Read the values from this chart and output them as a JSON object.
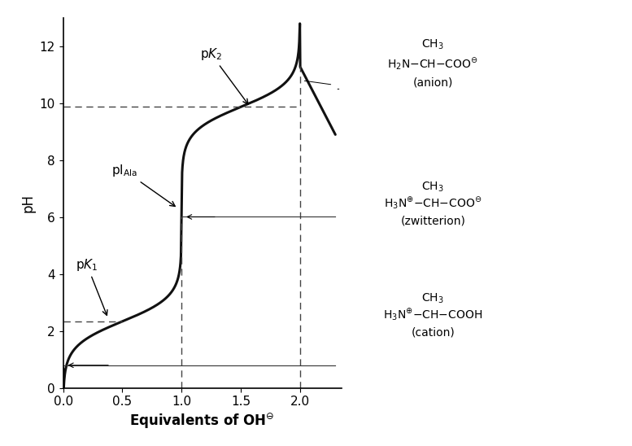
{
  "title": "",
  "xlabel": "Equivalents of OH",
  "ylabel": "pH",
  "xlim": [
    0,
    2.35
  ],
  "ylim": [
    0,
    13
  ],
  "yticks": [
    0,
    2,
    4,
    6,
    8,
    10,
    12
  ],
  "xticks": [
    0,
    0.5,
    1.0,
    1.5,
    2.0
  ],
  "pK1": 2.34,
  "pK2": 9.87,
  "pI": 6.01,
  "peak_pH": 11.3,
  "peak_eq": 2.0,
  "dashed_line_color": "#444444",
  "curve_color": "#111111",
  "bg_color": "#ffffff",
  "line_ref_color": "#333333"
}
